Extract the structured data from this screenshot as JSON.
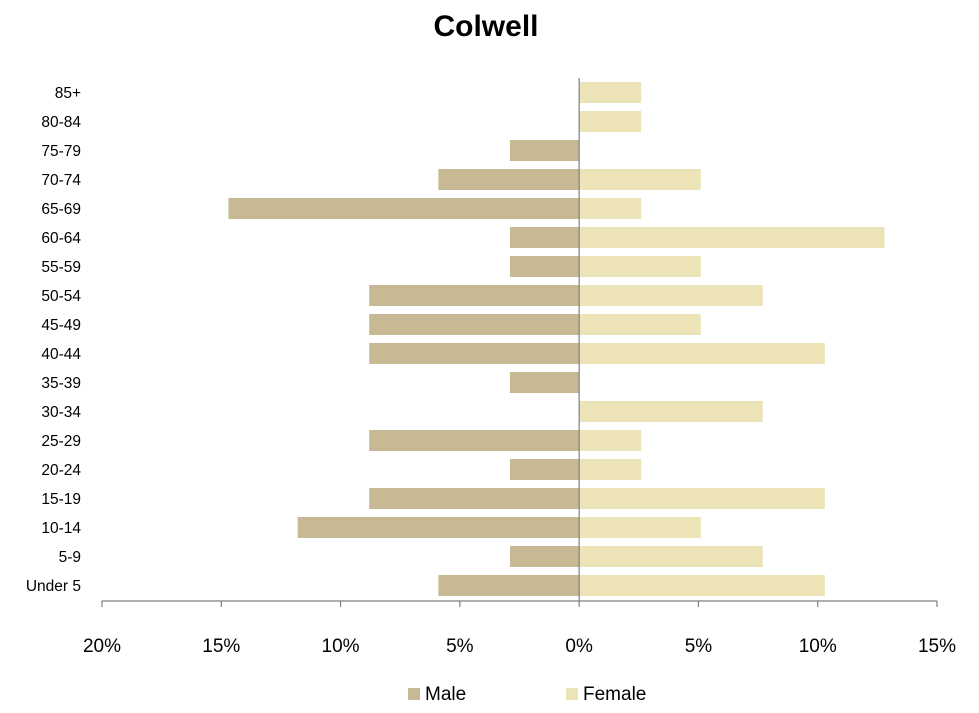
{
  "chart_data": {
    "type": "bar",
    "orientation": "horizontal",
    "title": "Colwell",
    "xlabel": "",
    "ylabel": "",
    "categories": [
      "Under 5",
      "5-9",
      "10-14",
      "15-19",
      "20-24",
      "25-29",
      "30-34",
      "35-39",
      "40-44",
      "45-49",
      "50-54",
      "55-59",
      "60-64",
      "65-69",
      "70-74",
      "75-79",
      "80-84",
      "85+"
    ],
    "series": [
      {
        "name": "Male",
        "color": "#c6b994",
        "values": [
          5.9,
          2.9,
          11.8,
          8.8,
          2.9,
          8.8,
          0,
          2.9,
          8.8,
          8.8,
          8.8,
          2.9,
          2.9,
          14.7,
          5.9,
          2.9,
          0,
          0
        ]
      },
      {
        "name": "Female",
        "color": "#ece4b7",
        "values": [
          10.3,
          7.7,
          5.1,
          10.3,
          2.6,
          2.6,
          7.7,
          0,
          10.3,
          5.1,
          7.7,
          5.1,
          12.8,
          2.6,
          5.1,
          0,
          2.6,
          2.6
        ]
      }
    ],
    "xlim": [
      -20,
      15
    ],
    "xticks": [
      -20,
      -15,
      -10,
      -5,
      0,
      5,
      10,
      15
    ],
    "xtick_labels": [
      "20%",
      "15%",
      "10%",
      "5%",
      "0%",
      "5%",
      "10%",
      "15%"
    ],
    "legend_position": "bottom",
    "grid": false
  }
}
